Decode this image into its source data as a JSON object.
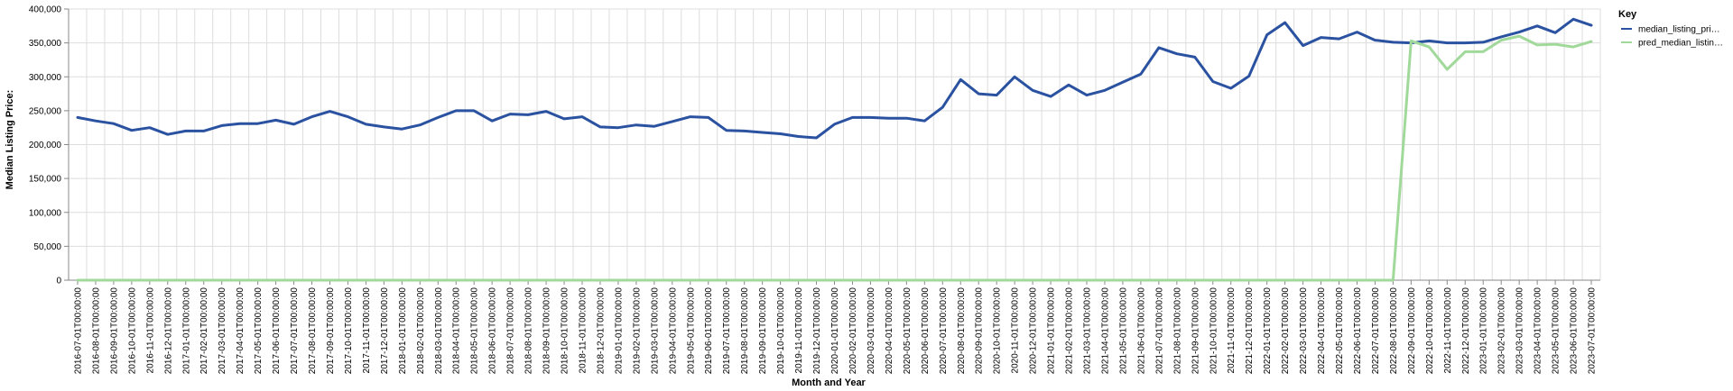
{
  "chart_data": {
    "type": "line",
    "xlabel": "Month and Year",
    "ylabel": "Median Listing Price:",
    "ylim": [
      0,
      400000
    ],
    "yticks": [
      "0",
      "50,000",
      "100,000",
      "150,000",
      "200,000",
      "250,000",
      "300,000",
      "350,000",
      "400,000"
    ],
    "grid": true,
    "legend": {
      "title": "Key",
      "position": "top-right"
    },
    "x": [
      "2016-07-01T00:00:00",
      "2016-08-01T00:00:00",
      "2016-09-01T00:00:00",
      "2016-10-01T00:00:00",
      "2016-11-01T00:00:00",
      "2016-12-01T00:00:00",
      "2017-01-01T00:00:00",
      "2017-02-01T00:00:00",
      "2017-03-01T00:00:00",
      "2017-04-01T00:00:00",
      "2017-05-01T00:00:00",
      "2017-06-01T00:00:00",
      "2017-07-01T00:00:00",
      "2017-08-01T00:00:00",
      "2017-09-01T00:00:00",
      "2017-10-01T00:00:00",
      "2017-11-01T00:00:00",
      "2017-12-01T00:00:00",
      "2018-01-01T00:00:00",
      "2018-02-01T00:00:00",
      "2018-03-01T00:00:00",
      "2018-04-01T00:00:00",
      "2018-05-01T00:00:00",
      "2018-06-01T00:00:00",
      "2018-07-01T00:00:00",
      "2018-08-01T00:00:00",
      "2018-09-01T00:00:00",
      "2018-10-01T00:00:00",
      "2018-11-01T00:00:00",
      "2018-12-01T00:00:00",
      "2019-01-01T00:00:00",
      "2019-02-01T00:00:00",
      "2019-03-01T00:00:00",
      "2019-04-01T00:00:00",
      "2019-05-01T00:00:00",
      "2019-06-01T00:00:00",
      "2019-07-01T00:00:00",
      "2019-08-01T00:00:00",
      "2019-09-01T00:00:00",
      "2019-10-01T00:00:00",
      "2019-11-01T00:00:00",
      "2019-12-01T00:00:00",
      "2020-01-01T00:00:00",
      "2020-02-01T00:00:00",
      "2020-03-01T00:00:00",
      "2020-04-01T00:00:00",
      "2020-05-01T00:00:00",
      "2020-06-01T00:00:00",
      "2020-07-01T00:00:00",
      "2020-08-01T00:00:00",
      "2020-09-01T00:00:00",
      "2020-10-01T00:00:00",
      "2020-11-01T00:00:00",
      "2020-12-01T00:00:00",
      "2021-01-01T00:00:00",
      "2021-02-01T00:00:00",
      "2021-03-01T00:00:00",
      "2021-04-01T00:00:00",
      "2021-05-01T00:00:00",
      "2021-06-01T00:00:00",
      "2021-07-01T00:00:00",
      "2021-08-01T00:00:00",
      "2021-09-01T00:00:00",
      "2021-10-01T00:00:00",
      "2021-11-01T00:00:00",
      "2021-12-01T00:00:00",
      "2022-01-01T00:00:00",
      "2022-02-01T00:00:00",
      "2022-03-01T00:00:00",
      "2022-04-01T00:00:00",
      "2022-05-01T00:00:00",
      "2022-06-01T00:00:00",
      "2022-07-01T00:00:00",
      "2022-08-01T00:00:00",
      "2022-09-01T00:00:00",
      "2022-10-01T00:00:00",
      "2022-11-01T00:00:00",
      "2022-12-01T00:00:00",
      "2023-01-01T00:00:00",
      "2023-02-01T00:00:00",
      "2023-03-01T00:00:00",
      "2023-04-01T00:00:00",
      "2023-05-01T00:00:00",
      "2023-06-01T00:00:00",
      "2023-07-01T00:00:00"
    ],
    "series": [
      {
        "name": "median_listing_pri…",
        "color": "#2a52a0",
        "values": [
          240000,
          235000,
          231000,
          221000,
          225000,
          215000,
          220000,
          220000,
          228000,
          231000,
          231000,
          236000,
          230000,
          241000,
          249000,
          241000,
          230000,
          226000,
          223000,
          229000,
          240000,
          250000,
          250000,
          235000,
          245000,
          244000,
          249000,
          238000,
          241000,
          226000,
          225000,
          229000,
          227000,
          234000,
          241000,
          240000,
          221000,
          220000,
          218000,
          216000,
          212000,
          210000,
          230000,
          240000,
          240000,
          239000,
          239000,
          235000,
          255000,
          296000,
          275000,
          273000,
          300000,
          280000,
          271000,
          288000,
          273000,
          280000,
          292000,
          304000,
          343000,
          334000,
          329000,
          293000,
          283000,
          301000,
          362000,
          380000,
          346000,
          358000,
          356000,
          366000,
          354000,
          351000,
          350000,
          353000,
          350000,
          350000,
          351000,
          359000,
          366000,
          375000,
          365000,
          385000,
          376000
        ]
      },
      {
        "name": "pred_median_listin…",
        "color": "#a1d99b",
        "values": [
          0,
          0,
          0,
          0,
          0,
          0,
          0,
          0,
          0,
          0,
          0,
          0,
          0,
          0,
          0,
          0,
          0,
          0,
          0,
          0,
          0,
          0,
          0,
          0,
          0,
          0,
          0,
          0,
          0,
          0,
          0,
          0,
          0,
          0,
          0,
          0,
          0,
          0,
          0,
          0,
          0,
          0,
          0,
          0,
          0,
          0,
          0,
          0,
          0,
          0,
          0,
          0,
          0,
          0,
          0,
          0,
          0,
          0,
          0,
          0,
          0,
          0,
          0,
          0,
          0,
          0,
          0,
          0,
          0,
          0,
          0,
          0,
          0,
          0,
          353000,
          344000,
          311000,
          337000,
          337000,
          354000,
          360000,
          347000,
          348000,
          344000,
          352000
        ]
      }
    ]
  }
}
